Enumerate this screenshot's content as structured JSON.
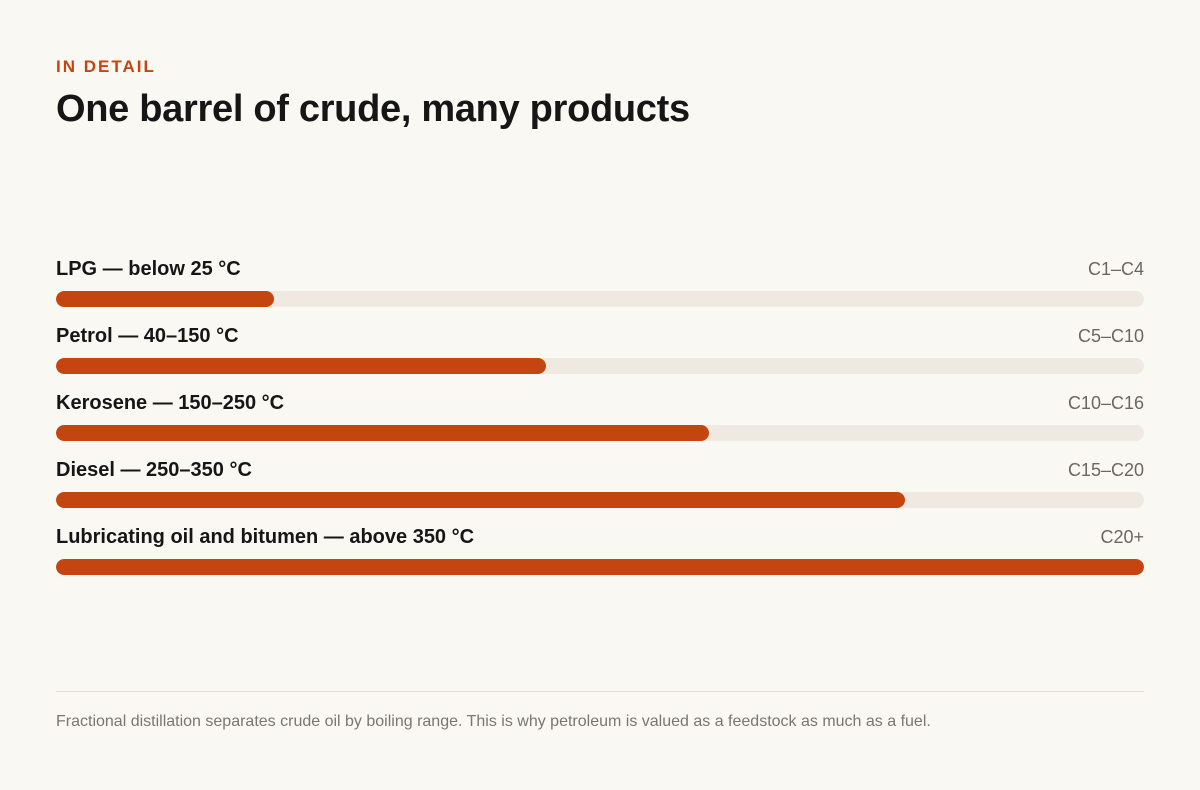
{
  "header": {
    "eyebrow": "IN DETAIL",
    "title": "One barrel of crude, many products"
  },
  "colors": {
    "accent": "#c4450f",
    "track": "#efe9e1",
    "background": "#faf8f3"
  },
  "chart_data": {
    "type": "bar",
    "orientation": "horizontal",
    "categories": [
      "LPG — below 25 °C",
      "Petrol — 40–150 °C",
      "Kerosene — 150–250 °C",
      "Diesel — 250–350 °C",
      "Lubricating oil and bitumen — above 350 °C"
    ],
    "annotations": [
      "C1–C4",
      "C5–C10",
      "C10–C16",
      "C15–C20",
      "C20+"
    ],
    "values": [
      20,
      45,
      60,
      78,
      100
    ],
    "xlim": [
      0,
      100
    ],
    "grid": false,
    "legend": "none"
  },
  "footer": {
    "note": "Fractional distillation separates crude oil by boiling range. This is why petroleum is valued as a feedstock as much as a fuel."
  }
}
